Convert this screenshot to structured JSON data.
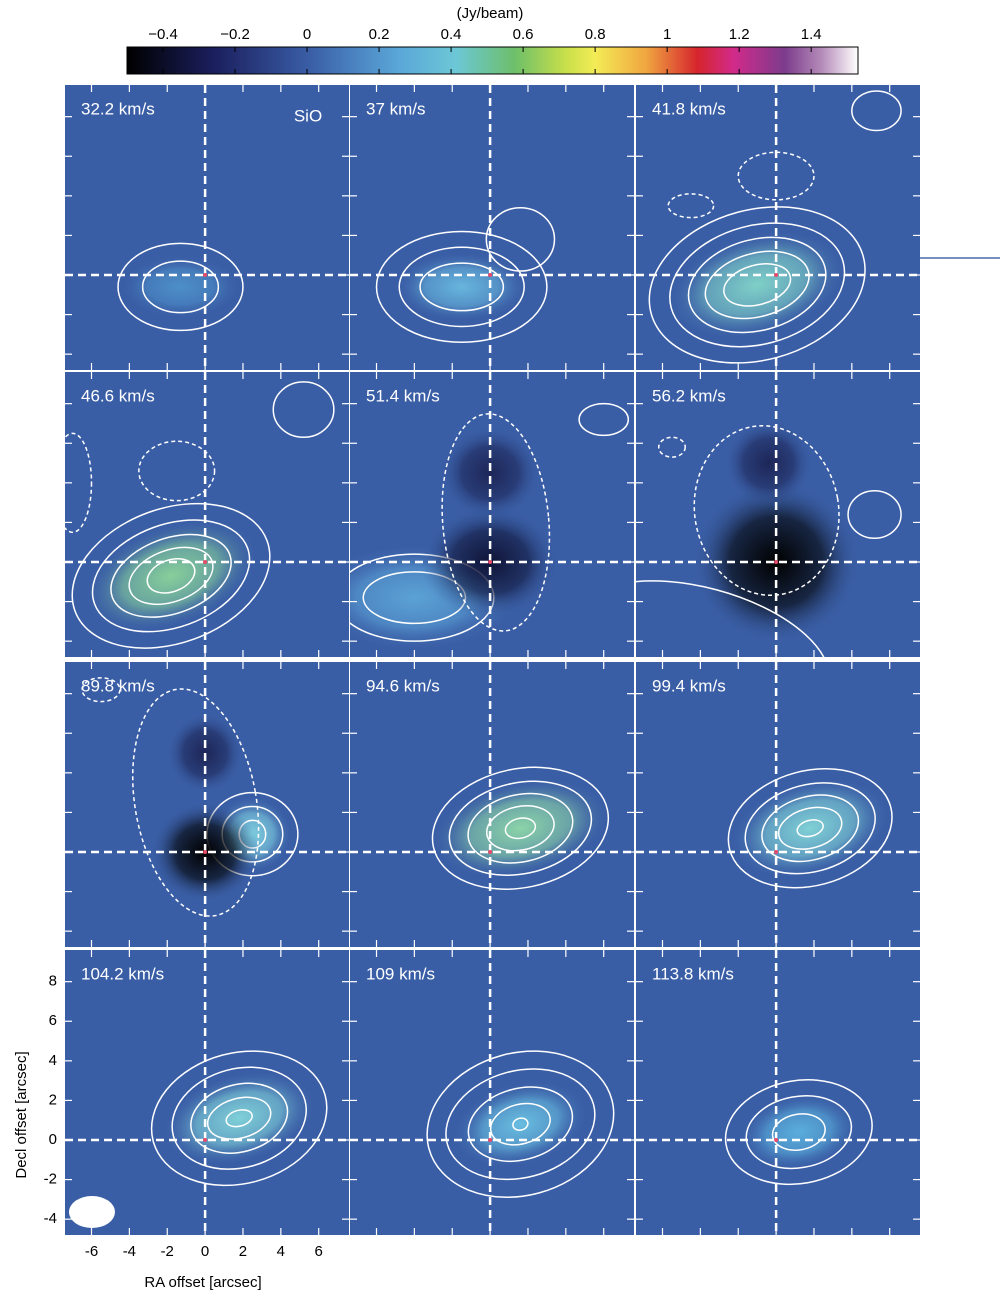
{
  "colorbar": {
    "label": "(Jy/beam)",
    "lim": [
      -0.5,
      1.53
    ],
    "ticks": [
      {
        "value": -0.4,
        "label": "−0.4"
      },
      {
        "value": -0.2,
        "label": "−0.2"
      },
      0,
      0.2,
      0.4,
      0.6,
      0.8,
      1,
      1.2,
      1.4
    ]
  },
  "molecule": "SiO",
  "panels": [
    "32.2 km/s",
    "37 km/s",
    "41.8 km/s",
    "46.6 km/s",
    "51.4 km/s",
    "56.2 km/s",
    "89.8 km/s",
    "94.6 km/s",
    "99.4 km/s",
    "104.2 km/s",
    "109 km/s",
    "113.8 km/s"
  ],
  "x_axis": {
    "label": "RA offset [arcsec]",
    "lim": [
      -7.4,
      7.6
    ],
    "ticks": [
      -6,
      -4,
      -2,
      0,
      2,
      4,
      6
    ]
  },
  "y_axis": {
    "label": "Decl offset [arcsec]",
    "lim": [
      -4.8,
      9.6
    ],
    "ticks": [
      8,
      6,
      4,
      2,
      0,
      -2,
      -4
    ]
  }
}
